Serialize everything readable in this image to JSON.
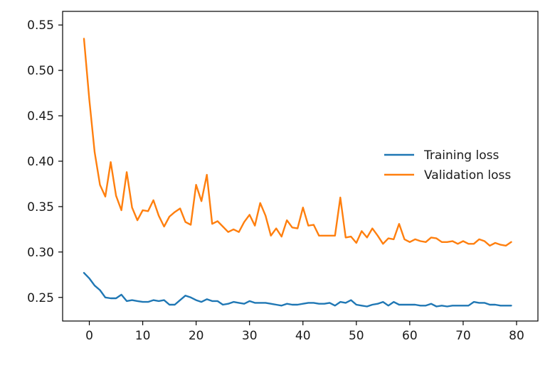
{
  "chart_data": {
    "type": "line",
    "title": "",
    "xlabel": "",
    "ylabel": "",
    "xlim": [
      -5,
      84
    ],
    "ylim": [
      0.224,
      0.565
    ],
    "x_ticks": [
      0,
      10,
      20,
      30,
      40,
      50,
      60,
      70,
      80
    ],
    "y_ticks": [
      0.25,
      0.3,
      0.35,
      0.4,
      0.45,
      0.5,
      0.55
    ],
    "x_tick_labels": [
      "0",
      "10",
      "20",
      "30",
      "40",
      "50",
      "60",
      "70",
      "80"
    ],
    "y_tick_labels": [
      "0.25",
      "0.30",
      "0.35",
      "0.40",
      "0.45",
      "0.50",
      "0.55"
    ],
    "grid": false,
    "legend_position": "right",
    "series": [
      {
        "name": "Training loss",
        "color": "#1f77b4",
        "x": [
          -1,
          0,
          1,
          2,
          3,
          4,
          5,
          6,
          7,
          8,
          9,
          10,
          11,
          12,
          13,
          14,
          15,
          16,
          17,
          18,
          19,
          20,
          21,
          22,
          23,
          24,
          25,
          26,
          27,
          28,
          29,
          30,
          31,
          32,
          33,
          34,
          35,
          36,
          37,
          38,
          39,
          40,
          41,
          42,
          43,
          44,
          45,
          46,
          47,
          48,
          49,
          50,
          51,
          52,
          53,
          54,
          55,
          56,
          57,
          58,
          59,
          60,
          61,
          62,
          63,
          64,
          65,
          66,
          67,
          68,
          69,
          70,
          71,
          72,
          73,
          74,
          75,
          76,
          77,
          78,
          79
        ],
        "values": [
          0.277,
          0.271,
          0.263,
          0.258,
          0.25,
          0.249,
          0.249,
          0.253,
          0.246,
          0.247,
          0.246,
          0.245,
          0.245,
          0.247,
          0.246,
          0.247,
          0.242,
          0.242,
          0.247,
          0.252,
          0.25,
          0.247,
          0.245,
          0.248,
          0.246,
          0.246,
          0.242,
          0.243,
          0.245,
          0.244,
          0.243,
          0.246,
          0.244,
          0.244,
          0.244,
          0.243,
          0.242,
          0.241,
          0.243,
          0.242,
          0.242,
          0.243,
          0.244,
          0.244,
          0.243,
          0.243,
          0.244,
          0.241,
          0.245,
          0.244,
          0.247,
          0.242,
          0.241,
          0.24,
          0.242,
          0.243,
          0.245,
          0.241,
          0.245,
          0.242,
          0.242,
          0.242,
          0.242,
          0.241,
          0.241,
          0.243,
          0.24,
          0.241,
          0.24,
          0.241,
          0.241,
          0.241,
          0.241,
          0.245,
          0.244,
          0.244,
          0.242,
          0.242,
          0.241,
          0.241,
          0.241
        ]
      },
      {
        "name": "Validation loss",
        "color": "#ff7f0e",
        "x": [
          -1,
          0,
          1,
          2,
          3,
          4,
          5,
          6,
          7,
          8,
          9,
          10,
          11,
          12,
          13,
          14,
          15,
          16,
          17,
          18,
          19,
          20,
          21,
          22,
          23,
          24,
          25,
          26,
          27,
          28,
          29,
          30,
          31,
          32,
          33,
          34,
          35,
          36,
          37,
          38,
          39,
          40,
          41,
          42,
          43,
          44,
          45,
          46,
          47,
          48,
          49,
          50,
          51,
          52,
          53,
          54,
          55,
          56,
          57,
          58,
          59,
          60,
          61,
          62,
          63,
          64,
          65,
          66,
          67,
          68,
          69,
          70,
          71,
          72,
          73,
          74,
          75,
          76,
          77,
          78,
          79
        ],
        "values": [
          0.535,
          0.468,
          0.41,
          0.374,
          0.361,
          0.399,
          0.362,
          0.346,
          0.388,
          0.349,
          0.335,
          0.346,
          0.345,
          0.357,
          0.34,
          0.328,
          0.339,
          0.344,
          0.348,
          0.333,
          0.33,
          0.374,
          0.356,
          0.385,
          0.331,
          0.334,
          0.328,
          0.322,
          0.325,
          0.322,
          0.333,
          0.341,
          0.329,
          0.354,
          0.34,
          0.318,
          0.326,
          0.317,
          0.335,
          0.327,
          0.326,
          0.349,
          0.329,
          0.33,
          0.318,
          0.318,
          0.318,
          0.318,
          0.36,
          0.316,
          0.317,
          0.31,
          0.323,
          0.316,
          0.326,
          0.318,
          0.309,
          0.315,
          0.314,
          0.331,
          0.314,
          0.311,
          0.314,
          0.312,
          0.311,
          0.316,
          0.315,
          0.311,
          0.311,
          0.312,
          0.309,
          0.312,
          0.309,
          0.309,
          0.314,
          0.312,
          0.307,
          0.31,
          0.308,
          0.307,
          0.311
        ]
      }
    ]
  }
}
